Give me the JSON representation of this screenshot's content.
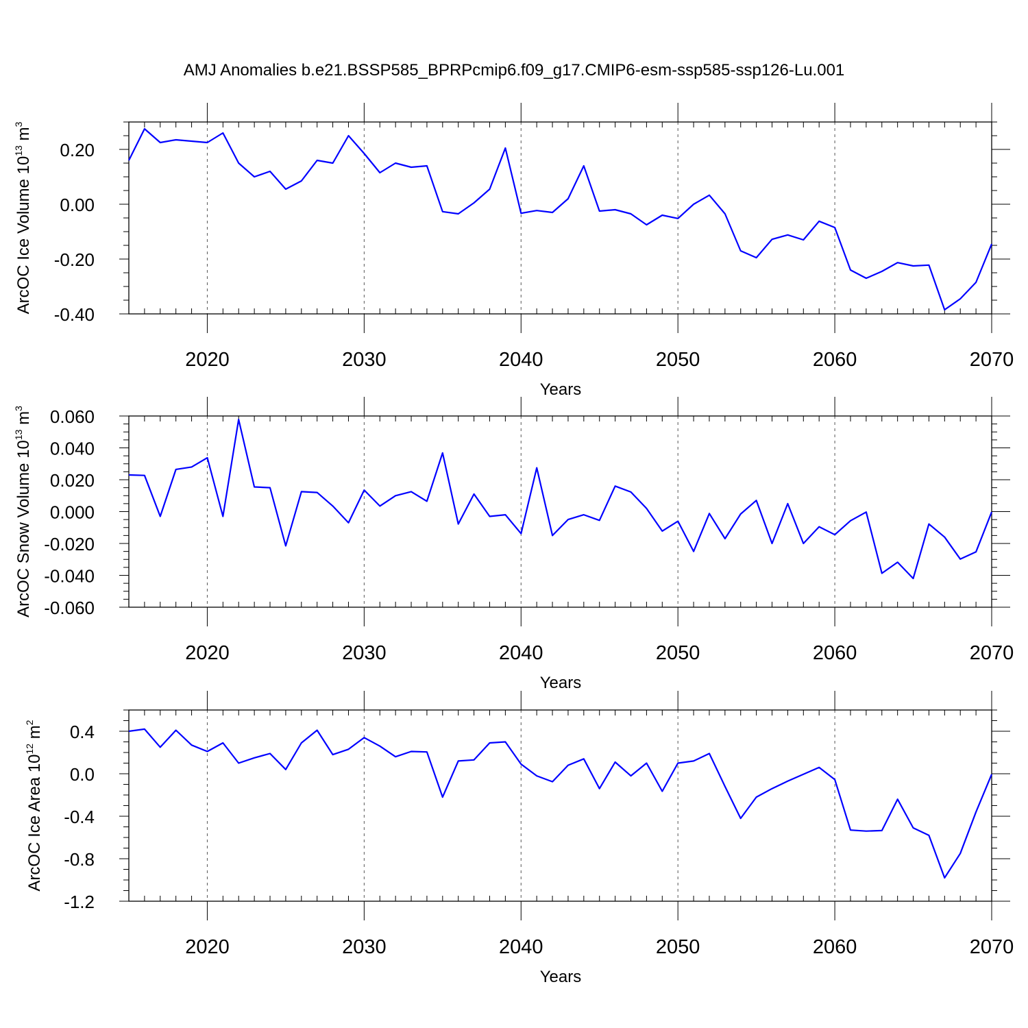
{
  "title": "AMJ Anomalies b.e21.BSSP585_BPRPcmip6.f09_g17.CMIP6-esm-ssp585-ssp126-Lu.001",
  "chart_data": [
    {
      "type": "line",
      "ylabel_main": "ArcOC Ice Volume 10",
      "ylabel_exp": "13",
      "ylabel_unit": " m",
      "ylabel_unit_exp": "3",
      "xlabel": "Years",
      "xlim": [
        2015,
        2070
      ],
      "ylim": [
        -0.4,
        0.3
      ],
      "xticks": [
        2020,
        2030,
        2040,
        2050,
        2060,
        2070
      ],
      "yticks": [
        {
          "v": -0.4,
          "label": "-0.40"
        },
        {
          "v": -0.2,
          "label": "-0.20"
        },
        {
          "v": 0.0,
          "label": "0.00"
        },
        {
          "v": 0.2,
          "label": "0.20"
        }
      ],
      "x_minor": 1,
      "y_minor": 0.05,
      "line_color": "#0000ff",
      "x": [
        2015,
        2016,
        2017,
        2018,
        2019,
        2020,
        2021,
        2022,
        2023,
        2024,
        2025,
        2026,
        2027,
        2028,
        2029,
        2030,
        2031,
        2032,
        2033,
        2034,
        2035,
        2036,
        2037,
        2038,
        2039,
        2040,
        2041,
        2042,
        2043,
        2044,
        2045,
        2046,
        2047,
        2048,
        2049,
        2050,
        2051,
        2052,
        2053,
        2054,
        2055,
        2056,
        2057,
        2058,
        2059,
        2060,
        2061,
        2062,
        2063,
        2064,
        2065,
        2066,
        2067,
        2068,
        2069,
        2070
      ],
      "y": [
        0.16,
        0.275,
        0.225,
        0.235,
        0.23,
        0.225,
        0.26,
        0.15,
        0.1,
        0.12,
        0.055,
        0.085,
        0.16,
        0.15,
        0.25,
        0.185,
        0.115,
        0.15,
        0.135,
        0.14,
        -0.027,
        -0.035,
        0.005,
        0.055,
        0.205,
        -0.033,
        -0.023,
        -0.03,
        0.02,
        0.14,
        -0.025,
        -0.02,
        -0.035,
        -0.075,
        -0.04,
        -0.052,
        0.0,
        0.033,
        -0.035,
        -0.17,
        -0.195,
        -0.128,
        -0.112,
        -0.13,
        -0.062,
        -0.085,
        -0.24,
        -0.27,
        -0.245,
        -0.213,
        -0.225,
        -0.222,
        -0.385,
        -0.345,
        -0.285,
        -0.145
      ]
    },
    {
      "type": "line",
      "ylabel_main": "ArcOC Snow Volume 10",
      "ylabel_exp": "13",
      "ylabel_unit": " m",
      "ylabel_unit_exp": "3",
      "xlabel": "Years",
      "xlim": [
        2015,
        2070
      ],
      "ylim": [
        -0.06,
        0.06
      ],
      "xticks": [
        2020,
        2030,
        2040,
        2050,
        2060,
        2070
      ],
      "yticks": [
        {
          "v": -0.06,
          "label": "-0.060"
        },
        {
          "v": -0.04,
          "label": "-0.040"
        },
        {
          "v": -0.02,
          "label": "-0.020"
        },
        {
          "v": 0.0,
          "label": "0.000"
        },
        {
          "v": 0.02,
          "label": "0.020"
        },
        {
          "v": 0.04,
          "label": "0.040"
        },
        {
          "v": 0.06,
          "label": "0.060"
        }
      ],
      "x_minor": 1,
      "y_minor": 0.005,
      "line_color": "#0000ff",
      "x": [
        2015,
        2016,
        2017,
        2018,
        2019,
        2020,
        2021,
        2022,
        2023,
        2024,
        2025,
        2026,
        2027,
        2028,
        2029,
        2030,
        2031,
        2032,
        2033,
        2034,
        2035,
        2036,
        2037,
        2038,
        2039,
        2040,
        2041,
        2042,
        2043,
        2044,
        2045,
        2046,
        2047,
        2048,
        2049,
        2050,
        2051,
        2052,
        2053,
        2054,
        2055,
        2056,
        2057,
        2058,
        2059,
        2060,
        2061,
        2062,
        2063,
        2064,
        2065,
        2066,
        2067,
        2068,
        2069,
        2070
      ],
      "y": [
        0.023,
        0.0227,
        -0.003,
        0.0265,
        0.028,
        0.0338,
        -0.003,
        0.0578,
        0.0155,
        0.015,
        -0.0215,
        0.0125,
        0.012,
        0.0035,
        -0.007,
        0.0135,
        0.0035,
        0.01,
        0.0125,
        0.0065,
        0.0368,
        -0.0078,
        0.011,
        -0.003,
        -0.002,
        -0.0138,
        0.0275,
        -0.015,
        -0.005,
        -0.002,
        -0.0055,
        0.016,
        0.0123,
        0.002,
        -0.0122,
        -0.006,
        -0.025,
        -0.0012,
        -0.017,
        -0.0015,
        0.007,
        -0.02,
        0.005,
        -0.02,
        -0.0095,
        -0.0145,
        -0.0057,
        -0.0003,
        -0.0387,
        -0.0318,
        -0.042,
        -0.0078,
        -0.016,
        -0.0298,
        -0.0253,
        -0.0002
      ]
    },
    {
      "type": "line",
      "ylabel_main": "ArcOC Ice Area 10",
      "ylabel_exp": "12",
      "ylabel_unit": " m",
      "ylabel_unit_exp": "2",
      "xlabel": "Years",
      "xlim": [
        2015,
        2070
      ],
      "ylim": [
        -1.2,
        0.6
      ],
      "xticks": [
        2020,
        2030,
        2040,
        2050,
        2060,
        2070
      ],
      "yticks": [
        {
          "v": -1.2,
          "label": "-1.2"
        },
        {
          "v": -0.8,
          "label": "-0.8"
        },
        {
          "v": -0.4,
          "label": "-0.4"
        },
        {
          "v": 0.0,
          "label": "0.0"
        },
        {
          "v": 0.4,
          "label": "0.4"
        }
      ],
      "x_minor": 1,
      "y_minor": 0.1,
      "line_color": "#0000ff",
      "x": [
        2015,
        2016,
        2017,
        2018,
        2019,
        2020,
        2021,
        2022,
        2023,
        2024,
        2025,
        2026,
        2027,
        2028,
        2029,
        2030,
        2031,
        2032,
        2033,
        2034,
        2035,
        2036,
        2037,
        2038,
        2039,
        2040,
        2041,
        2042,
        2043,
        2044,
        2045,
        2046,
        2047,
        2048,
        2049,
        2050,
        2051,
        2052,
        2053,
        2054,
        2055,
        2056,
        2057,
        2058,
        2059,
        2060,
        2061,
        2062,
        2063,
        2064,
        2065,
        2066,
        2067,
        2068,
        2069,
        2070
      ],
      "y": [
        0.4,
        0.42,
        0.25,
        0.41,
        0.27,
        0.21,
        0.29,
        0.1,
        0.15,
        0.19,
        0.04,
        0.29,
        0.41,
        0.18,
        0.23,
        0.34,
        0.26,
        0.16,
        0.21,
        0.205,
        -0.22,
        0.12,
        0.13,
        0.29,
        0.3,
        0.09,
        -0.02,
        -0.075,
        0.08,
        0.14,
        -0.14,
        0.11,
        -0.02,
        0.1,
        -0.165,
        0.1,
        0.12,
        0.19,
        -0.12,
        -0.42,
        -0.22,
        -0.14,
        -0.07,
        -0.005,
        0.06,
        -0.055,
        -0.53,
        -0.54,
        -0.535,
        -0.24,
        -0.51,
        -0.58,
        -0.98,
        -0.75,
        -0.36,
        -0.005
      ]
    }
  ]
}
